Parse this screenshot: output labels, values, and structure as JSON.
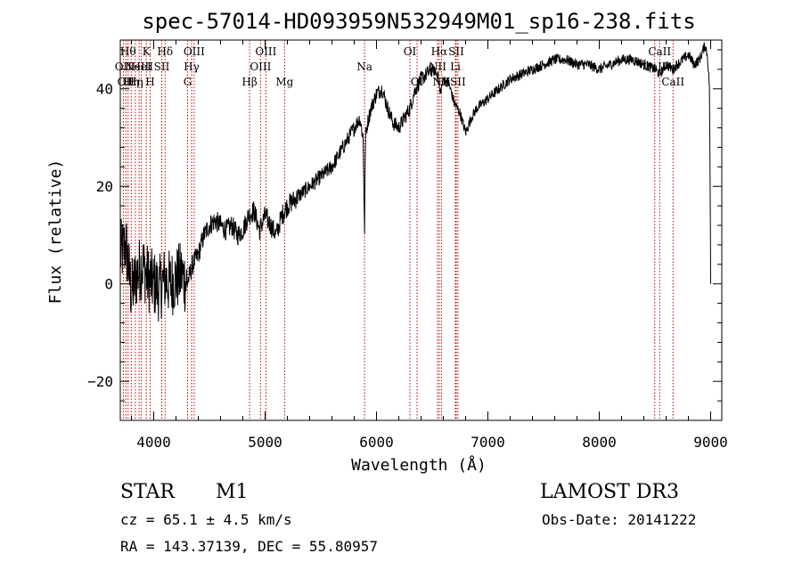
{
  "chart_data": {
    "type": "line",
    "title": "spec-57014-HD093959N532949M01_sp16-238.fits",
    "xlabel": "Wavelength (Å)",
    "ylabel": "Flux (relative)",
    "xlim": [
      3700,
      9100
    ],
    "ylim": [
      -28,
      50
    ],
    "x_ticks": [
      4000,
      5000,
      6000,
      7000,
      8000,
      9000
    ],
    "x_tick_labels": [
      "4000",
      "5000",
      "6000",
      "7000",
      "8000",
      "9000"
    ],
    "y_ticks": [
      -20,
      0,
      20,
      40
    ],
    "y_tick_labels": [
      "−20",
      "0",
      "20",
      "40"
    ],
    "grid": false,
    "series": [
      {
        "name": "flux",
        "x": [
          3700,
          3750,
          3800,
          3850,
          3900,
          3950,
          4000,
          4050,
          4100,
          4150,
          4200,
          4250,
          4300,
          4350,
          4400,
          4450,
          4500,
          4550,
          4600,
          4650,
          4700,
          4750,
          4800,
          4850,
          4900,
          4950,
          5000,
          5050,
          5100,
          5150,
          5200,
          5300,
          5400,
          5500,
          5600,
          5700,
          5800,
          5850,
          5880,
          5893,
          5900,
          5920,
          5950,
          6000,
          6050,
          6100,
          6150,
          6200,
          6250,
          6300,
          6350,
          6400,
          6450,
          6500,
          6550,
          6570,
          6600,
          6650,
          6700,
          6750,
          6800,
          6850,
          6900,
          6950,
          7000,
          7100,
          7200,
          7300,
          7400,
          7500,
          7600,
          7700,
          7800,
          7900,
          8000,
          8100,
          8200,
          8300,
          8400,
          8500,
          8542,
          8600,
          8662,
          8700,
          8750,
          8800,
          8850,
          8900,
          8950,
          8970,
          8990,
          9000
        ],
        "y": [
          6,
          8,
          -2,
          2,
          4,
          1,
          0,
          -1,
          1,
          0,
          1,
          2,
          0,
          4,
          6,
          10,
          12,
          13,
          12,
          11,
          12,
          10,
          11,
          14,
          15,
          11,
          14,
          12,
          10,
          14,
          16,
          18,
          20,
          22,
          24,
          28,
          32,
          34,
          30,
          10,
          30,
          33,
          36,
          39,
          40,
          36,
          33,
          32,
          34,
          36,
          40,
          42,
          43,
          44,
          43,
          39,
          42,
          41,
          37,
          35,
          31,
          34,
          36,
          37,
          38,
          40,
          42,
          43,
          44,
          45,
          46,
          46,
          45,
          45,
          44,
          45,
          46,
          46,
          45,
          44,
          43,
          45,
          44,
          45,
          46,
          47,
          45,
          46,
          49,
          47,
          40,
          0
        ]
      }
    ],
    "lines": [
      {
        "wl": 3727,
        "label": "OII",
        "row": 2
      },
      {
        "wl": 3750,
        "label": "OII",
        "row": 3
      },
      {
        "wl": 3770,
        "label": "Hθ",
        "row": 1
      },
      {
        "wl": 3798,
        "label": "Hη",
        "row": 3
      },
      {
        "wl": 3835,
        "label": "Hη",
        "row": 3
      },
      {
        "wl": 3869,
        "label": "NeIII",
        "row": 2
      },
      {
        "wl": 3889,
        "label": "HeI",
        "row": 2
      },
      {
        "wl": 3934,
        "label": "K",
        "row": 1
      },
      {
        "wl": 3968,
        "label": "H",
        "row": 3
      },
      {
        "wl": 4072,
        "label": "SII",
        "row": 2
      },
      {
        "wl": 4102,
        "label": "Hδ",
        "row": 1
      },
      {
        "wl": 4304,
        "label": "G",
        "row": 3
      },
      {
        "wl": 4340,
        "label": "Hγ",
        "row": 2
      },
      {
        "wl": 4363,
        "label": "OIII",
        "row": 1
      },
      {
        "wl": 4861,
        "label": "Hβ",
        "row": 3
      },
      {
        "wl": 4959,
        "label": "OIII",
        "row": 2
      },
      {
        "wl": 5007,
        "label": "OIII",
        "row": 1
      },
      {
        "wl": 5175,
        "label": "Mg",
        "row": 3
      },
      {
        "wl": 5893,
        "label": "Na",
        "row": 2
      },
      {
        "wl": 6300,
        "label": "OI",
        "row": 1
      },
      {
        "wl": 6364,
        "label": "OI",
        "row": 3
      },
      {
        "wl": 6548,
        "label": "NII",
        "row": 2
      },
      {
        "wl": 6563,
        "label": "Hα",
        "row": 1
      },
      {
        "wl": 6583,
        "label": "NII",
        "row": 3
      },
      {
        "wl": 6708,
        "label": "Li",
        "row": 2
      },
      {
        "wl": 6716,
        "label": "SII",
        "row": 1
      },
      {
        "wl": 6731,
        "label": "SII",
        "row": 3
      },
      {
        "wl": 8498,
        "label": "CaII",
        "row": 2
      },
      {
        "wl": 8542,
        "label": "CaII",
        "row": 1
      },
      {
        "wl": 8662,
        "label": "CaII",
        "row": 3
      }
    ]
  },
  "info": {
    "object_class": "STAR",
    "subclass": "M1",
    "survey": "LAMOST DR3",
    "cz": "cz = 65.1 ± 4.5 km/s",
    "obs_date": "Obs-Date: 20141222",
    "coords": "RA = 143.37139, DEC =  55.80957"
  }
}
